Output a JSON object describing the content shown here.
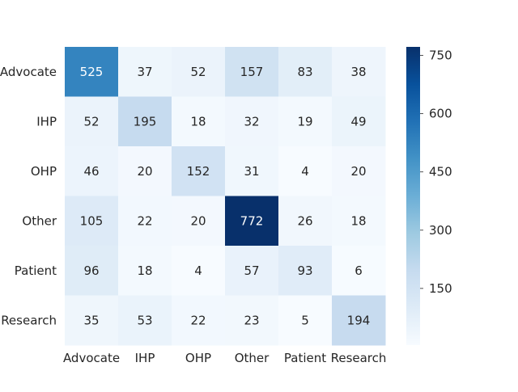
{
  "chart_data": {
    "type": "heatmap",
    "title": "",
    "xlabel": "",
    "ylabel": "",
    "x_categories": [
      "Advocate",
      "IHP",
      "OHP",
      "Other",
      "Patient",
      "Research"
    ],
    "y_categories": [
      "Advocate",
      "IHP",
      "OHP",
      "Other",
      "Patient",
      "Research"
    ],
    "values": [
      [
        525,
        37,
        52,
        157,
        83,
        38
      ],
      [
        52,
        195,
        18,
        32,
        19,
        49
      ],
      [
        46,
        20,
        152,
        31,
        4,
        20
      ],
      [
        105,
        22,
        20,
        772,
        26,
        18
      ],
      [
        96,
        18,
        4,
        57,
        93,
        6
      ],
      [
        35,
        53,
        22,
        23,
        5,
        194
      ]
    ],
    "colorbar": {
      "colormap": "Blues",
      "range": [
        4,
        772
      ],
      "ticks": [
        150,
        300,
        450,
        600,
        750
      ],
      "tick_labels": [
        "150",
        "300",
        "450",
        "600",
        "750"
      ]
    },
    "grid": false,
    "legend": "none"
  }
}
